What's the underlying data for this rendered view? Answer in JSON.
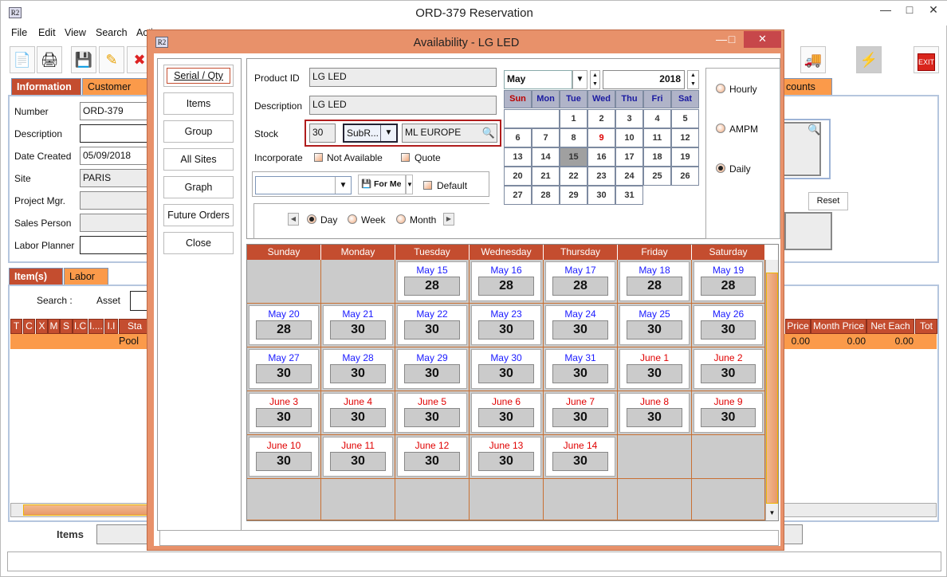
{
  "window": {
    "title": "ORD-379 Reservation",
    "icon_text": "R2"
  },
  "menu": [
    "File",
    "Edit",
    "View",
    "Search",
    "Acti"
  ],
  "tabs": {
    "information": "Information",
    "customer": "Customer",
    "accounts": "counts"
  },
  "info": {
    "labels": [
      "Number",
      "Description",
      "Date Created",
      "Site",
      "Project Mgr.",
      "Sales Person",
      "Labor Planner"
    ],
    "values": [
      "ORD-379",
      "",
      "05/09/2018",
      "PARIS",
      "",
      "",
      ""
    ],
    "reset": "Reset"
  },
  "item_tabs": {
    "items": "Item(s)",
    "labor": "Labor"
  },
  "search": {
    "label": "Search :",
    "asset": "Asset"
  },
  "table": {
    "left_headers": [
      "T",
      "C",
      "X",
      "M",
      "S",
      "I.C",
      "I....",
      "I.I",
      "Sta"
    ],
    "right_headers": [
      "Price",
      "Month Price",
      "Net Each",
      "Tot"
    ],
    "row": {
      "status": "Pool",
      "price": "0.00",
      "month_price": "0.00",
      "net_each": "0.00"
    }
  },
  "footer": {
    "items_label": "Items"
  },
  "dialog": {
    "title": "Availability - LG LED",
    "icon_text": "R2",
    "buttons": [
      "Serial / Qty",
      "Items",
      "Group",
      "All Sites",
      "Graph",
      "Future Orders",
      "Close"
    ],
    "product_id_label": "Product ID",
    "product_id": "LG LED",
    "description_label": "Description",
    "description": "LG LED",
    "stock_label": "Stock",
    "stock": "30",
    "subrental": "SubR...",
    "vendor": "ML EUROPE",
    "incorporate_label": "Incorporate",
    "not_available": "Not Available",
    "quote": "Quote",
    "for_me": "For Me",
    "default": "Default",
    "view_day": "Day",
    "view_week": "Week",
    "view_month": "Month",
    "selected_view": "Day",
    "interval": {
      "hourly": "Hourly",
      "ampm": "AMPM",
      "daily": "Daily",
      "selected": "Daily"
    }
  },
  "mini_calendar": {
    "month": "May",
    "year": "2018",
    "weekdays": [
      "Sun",
      "Mon",
      "Tue",
      "Wed",
      "Thu",
      "Fri",
      "Sat"
    ],
    "start_offset": 2,
    "days": 31,
    "selected": 15,
    "red_days": [
      9
    ]
  },
  "colors": {
    "May": "#1a1aff",
    "June": "#e00000",
    "accent": "#c44d2f",
    "tab": "#fb9a4a",
    "dialog": "#e8916a"
  },
  "week_grid": {
    "headers": [
      "Sunday",
      "Monday",
      "Tuesday",
      "Wednesday",
      "Thursday",
      "Friday",
      "Saturday"
    ],
    "weeks": [
      [
        null,
        null,
        {
          "d": "May 15",
          "v": "28"
        },
        {
          "d": "May 16",
          "v": "28"
        },
        {
          "d": "May 17",
          "v": "28"
        },
        {
          "d": "May 18",
          "v": "28"
        },
        {
          "d": "May 19",
          "v": "28"
        }
      ],
      [
        {
          "d": "May 20",
          "v": "28"
        },
        {
          "d": "May 21",
          "v": "30"
        },
        {
          "d": "May 22",
          "v": "30"
        },
        {
          "d": "May 23",
          "v": "30"
        },
        {
          "d": "May 24",
          "v": "30"
        },
        {
          "d": "May 25",
          "v": "30"
        },
        {
          "d": "May 26",
          "v": "30"
        }
      ],
      [
        {
          "d": "May 27",
          "v": "30"
        },
        {
          "d": "May 28",
          "v": "30"
        },
        {
          "d": "May 29",
          "v": "30"
        },
        {
          "d": "May 30",
          "v": "30"
        },
        {
          "d": "May 31",
          "v": "30"
        },
        {
          "d": "June 1",
          "v": "30"
        },
        {
          "d": "June 2",
          "v": "30"
        }
      ],
      [
        {
          "d": "June 3",
          "v": "30"
        },
        {
          "d": "June 4",
          "v": "30"
        },
        {
          "d": "June 5",
          "v": "30"
        },
        {
          "d": "June 6",
          "v": "30"
        },
        {
          "d": "June 7",
          "v": "30"
        },
        {
          "d": "June 8",
          "v": "30"
        },
        {
          "d": "June 9",
          "v": "30"
        }
      ],
      [
        {
          "d": "June 10",
          "v": "30"
        },
        {
          "d": "June 11",
          "v": "30"
        },
        {
          "d": "June 12",
          "v": "30"
        },
        {
          "d": "June 13",
          "v": "30"
        },
        {
          "d": "June 14",
          "v": "30"
        },
        null,
        null
      ],
      [
        null,
        null,
        null,
        null,
        null,
        null,
        null
      ]
    ]
  }
}
